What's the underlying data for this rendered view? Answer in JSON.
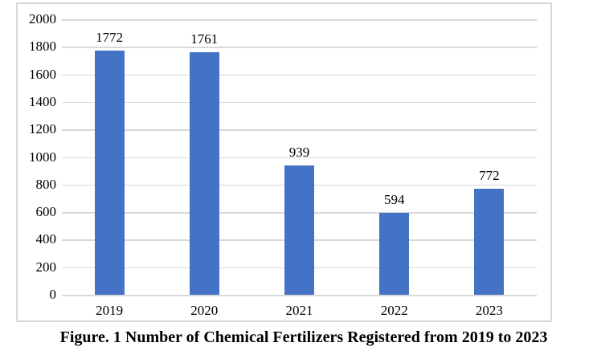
{
  "chart_data": {
    "type": "bar",
    "title": "",
    "caption": "Figure. 1 Number of Chemical Fertilizers Registered from 2019 to 2023",
    "categories": [
      "2019",
      "2020",
      "2021",
      "2022",
      "2023"
    ],
    "values": [
      1772,
      1761,
      939,
      594,
      772
    ],
    "data_labels": [
      "1772",
      "1761",
      "939",
      "594",
      "772"
    ],
    "xlabel": "",
    "ylabel": "",
    "ylim": [
      0,
      2000
    ],
    "ytick_step": 200,
    "yticks": [
      0,
      200,
      400,
      600,
      800,
      1000,
      1200,
      1400,
      1600,
      1800,
      2000
    ],
    "grid": true,
    "legend": false,
    "colors": {
      "bar": "#4472C4",
      "gridline": "#D9D9D9",
      "frame_border": "#D9D9D9",
      "text": "#000000",
      "background": "#FFFFFF"
    }
  }
}
